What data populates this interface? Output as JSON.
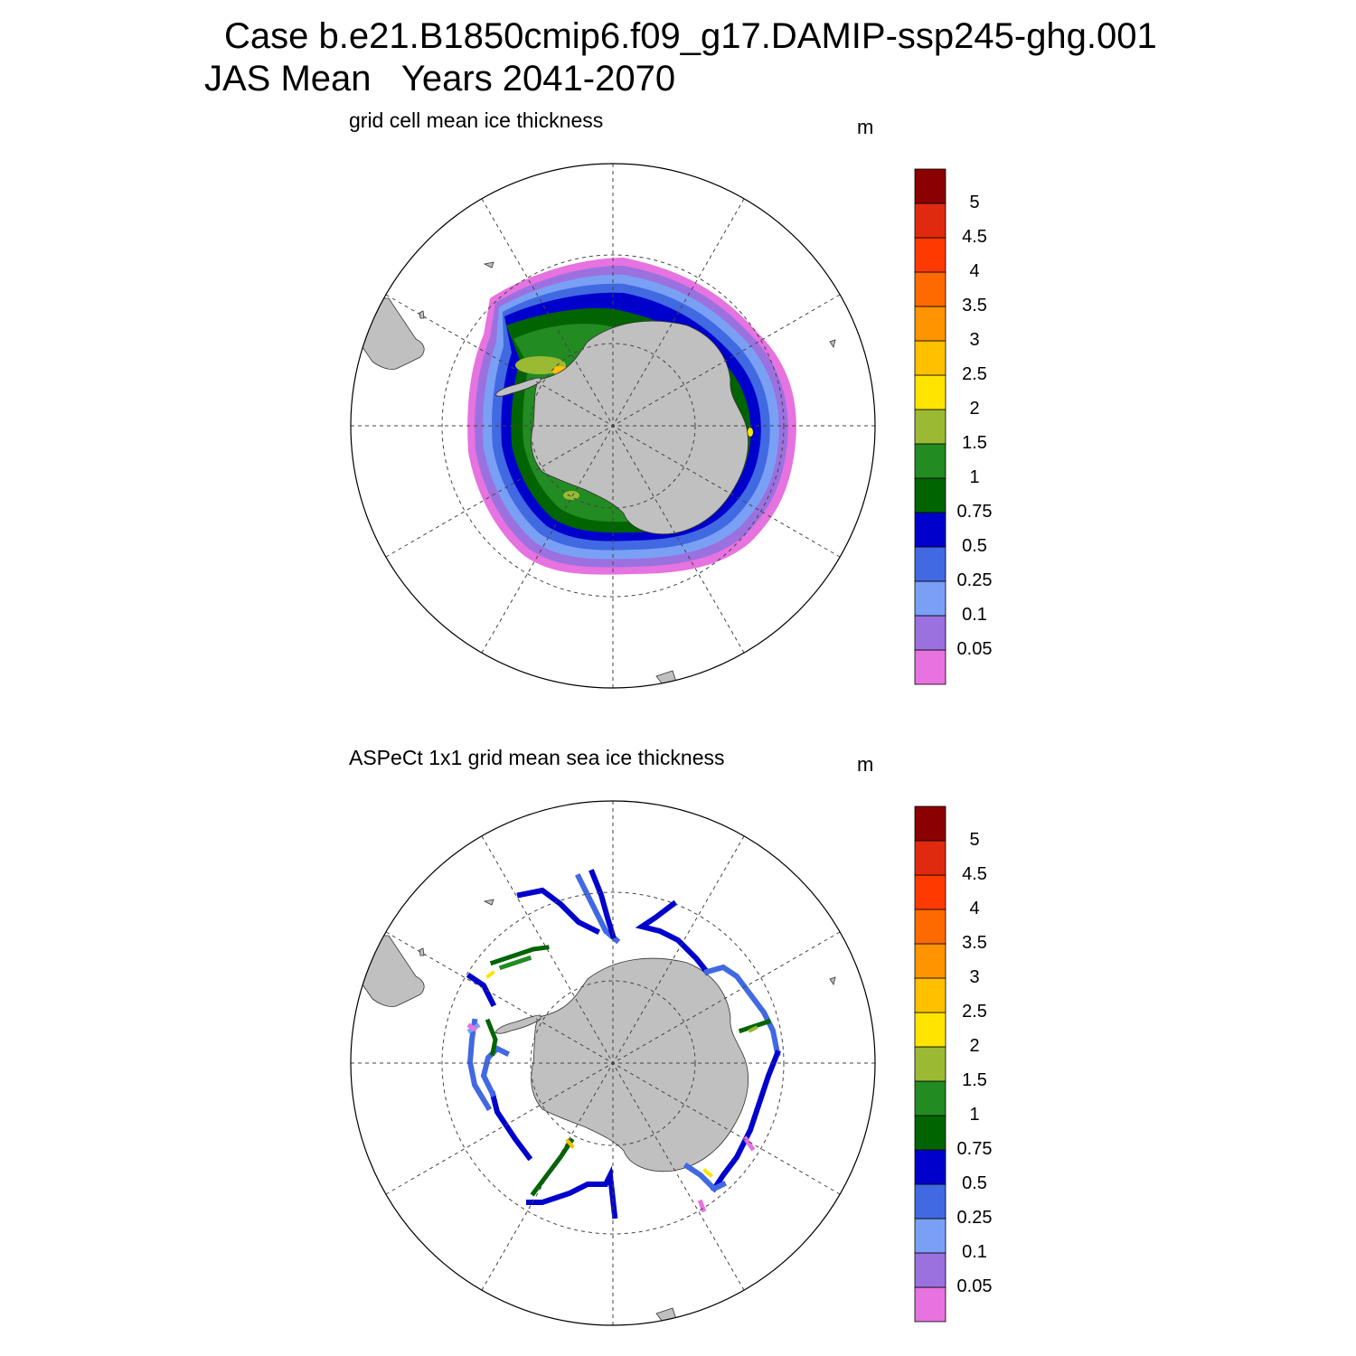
{
  "title": {
    "line1": "Case b.e21.B1850cmip6.f09_g17.DAMIP-ssp245-ghg.001",
    "season": "JAS Mean",
    "years": "Years 2041-2070"
  },
  "colors": {
    "land": "#c0c0c0",
    "bins": [
      "#e673e0",
      "#9b71e0",
      "#7aa0f5",
      "#4169e1",
      "#0000cd",
      "#006400",
      "#228b22",
      "#9aba34",
      "#ffe400",
      "#ffc000",
      "#ff9300",
      "#ff6a00",
      "#ff3a00",
      "#e02a10",
      "#8b0000"
    ]
  },
  "colorbar": {
    "unit": "m",
    "labels": [
      "0.05",
      "0.1",
      "0.25",
      "0.5",
      "0.75",
      "1",
      "1.5",
      "2",
      "2.5",
      "3",
      "3.5",
      "4",
      "4.5",
      "5"
    ]
  },
  "panels": [
    {
      "title": "grid cell mean ice thickness",
      "unit": "m"
    },
    {
      "title": "ASPeCt 1x1 grid mean sea ice thickness",
      "unit": "m"
    }
  ]
}
